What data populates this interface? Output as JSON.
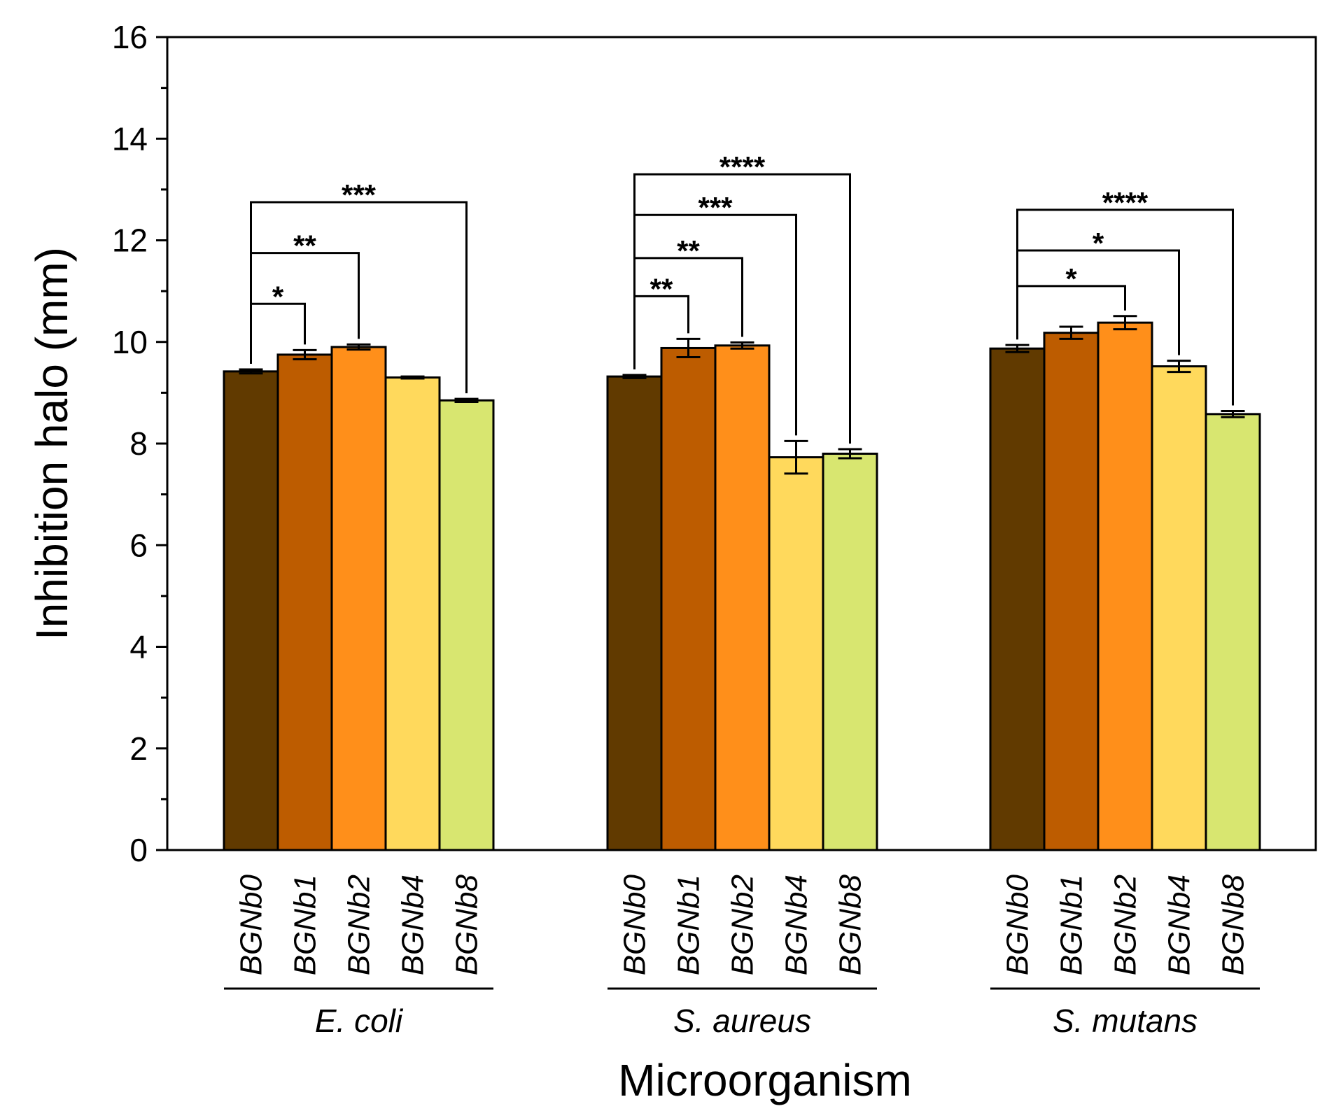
{
  "chart_data": {
    "type": "bar",
    "title": "",
    "xlabel": "Microorganism",
    "ylabel": "Inhibition halo (mm)",
    "ylim": [
      0,
      16
    ],
    "yticks": [
      0,
      2,
      4,
      6,
      8,
      10,
      12,
      14,
      16
    ],
    "yticks_labels": [
      "0",
      "2",
      "4",
      "6",
      "8",
      "10",
      "12",
      "14",
      "16"
    ],
    "grid": false,
    "legend": "none",
    "categories": [
      "BGNb0",
      "BGNb1",
      "BGNb2",
      "BGNb4",
      "BGNb8"
    ],
    "colors": [
      "#613A00",
      "#BD5C00",
      "#FF8F1A",
      "#FFD95C",
      "#D8E670"
    ],
    "groups": [
      {
        "name": "E. coli",
        "values": [
          9.42,
          9.75,
          9.9,
          9.3,
          8.85
        ],
        "errors": [
          0.04,
          0.09,
          0.05,
          0.02,
          0.03
        ],
        "comparisons": [
          {
            "from": 0,
            "to": 1,
            "y": 10.75,
            "label": "*"
          },
          {
            "from": 0,
            "to": 2,
            "y": 11.75,
            "label": "**"
          },
          {
            "from": 0,
            "to": 4,
            "y": 12.75,
            "label": "***"
          }
        ]
      },
      {
        "name": "S. aureus",
        "values": [
          9.32,
          9.88,
          9.93,
          7.73,
          7.8
        ],
        "errors": [
          0.03,
          0.18,
          0.06,
          0.32,
          0.09
        ],
        "comparisons": [
          {
            "from": 0,
            "to": 1,
            "y": 10.9,
            "label": "**"
          },
          {
            "from": 0,
            "to": 2,
            "y": 11.65,
            "label": "**"
          },
          {
            "from": 0,
            "to": 3,
            "y": 12.5,
            "label": "***"
          },
          {
            "from": 0,
            "to": 4,
            "y": 13.3,
            "label": "****"
          }
        ]
      },
      {
        "name": "S. mutans",
        "values": [
          9.87,
          10.18,
          10.38,
          9.52,
          8.58
        ],
        "errors": [
          0.07,
          0.12,
          0.13,
          0.11,
          0.06
        ],
        "comparisons": [
          {
            "from": 0,
            "to": 2,
            "y": 11.1,
            "label": "*"
          },
          {
            "from": 0,
            "to": 3,
            "y": 11.8,
            "label": "*"
          },
          {
            "from": 0,
            "to": 4,
            "y": 12.6,
            "label": "****"
          }
        ]
      }
    ]
  }
}
